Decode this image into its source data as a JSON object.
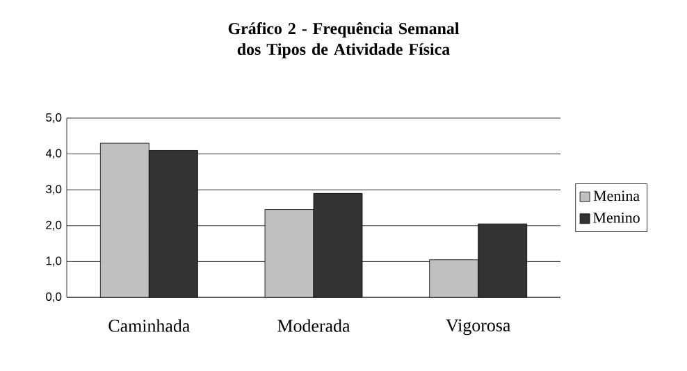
{
  "chart_data": {
    "type": "bar",
    "title": "Gráfico 2 - Frequência Semanal dos Tipos de Atividade Física",
    "categories": [
      "Caminhada",
      "Moderada",
      "Vigorosa"
    ],
    "series": [
      {
        "name": "Menina",
        "color": "#c0c0c0",
        "values": [
          4.3,
          2.45,
          1.05
        ]
      },
      {
        "name": "Menino",
        "color": "#333333",
        "values": [
          4.1,
          2.9,
          2.05
        ]
      }
    ],
    "ylim": [
      0,
      5
    ],
    "yticks": [
      {
        "value": 0,
        "label": "0,0"
      },
      {
        "value": 1,
        "label": "1,0"
      },
      {
        "value": 2,
        "label": "2,0"
      },
      {
        "value": 3,
        "label": "3,0"
      },
      {
        "value": 4,
        "label": "4,0"
      },
      {
        "value": 5,
        "label": "5,0"
      }
    ],
    "grid": "y",
    "legend": "right"
  }
}
